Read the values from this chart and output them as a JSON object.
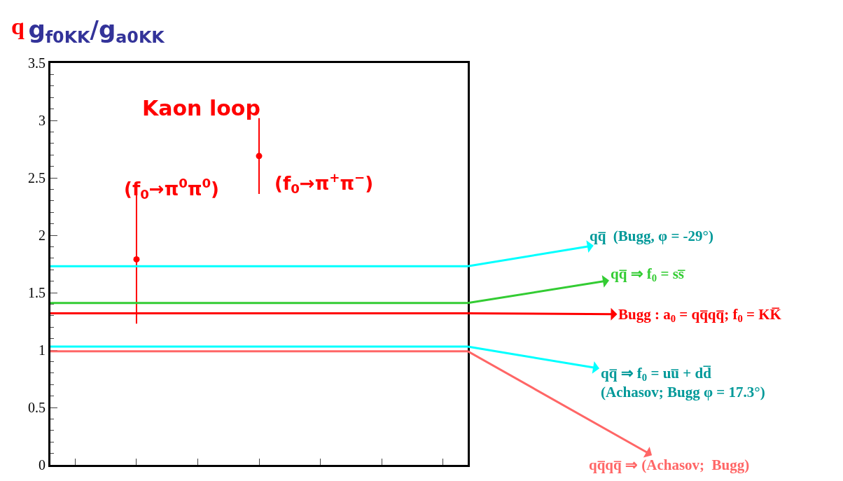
{
  "chart_data": {
    "type": "scatter",
    "title": "g$_{f0KK}$/g$_{a0KK}$",
    "categories": [
      null,
      null,
      null,
      null,
      null,
      null,
      null
    ],
    "series": [
      {
        "color": "#ff0000",
        "values": [
          null,
          1.79,
          null,
          2.69,
          null,
          null,
          null
        ],
        "errors": [
          null,
          0.56,
          null,
          0.33,
          null,
          null,
          null
        ]
      }
    ],
    "marker": "circle",
    "grid": false,
    "legend": false,
    "ylim": [
      0,
      3.5
    ],
    "yticks": [
      0,
      0.5,
      1,
      1.5,
      2,
      2.5,
      3,
      3.5
    ],
    "tick_labels": "y",
    "ref_lines": [
      {
        "axis": "y",
        "value": 1.73,
        "color": "#00ffff"
      },
      {
        "axis": "y",
        "value": 1.41,
        "color": "#33cc33"
      },
      {
        "axis": "y",
        "value": 1.32,
        "color": "#ff0000"
      },
      {
        "axis": "y",
        "value": 1.03,
        "color": "#00ffff"
      },
      {
        "axis": "y",
        "value": 0.99,
        "color": "#ff6666"
      }
    ],
    "annotations": [
      "qq̅  (Bugg, φ = -29°)",
      "qq̅ ⇒ f$_{0}$ = ss̅",
      "Bugg : a$_{0}$ = qq̅qq̅; f$_{0}$ = KK̅",
      "qq̅ ⇒ f$_{0}$ = uu̅ + dd̅\n(Achasov; Bugg φ = 17.3°)",
      "qq̅qq̅ ⇒ (Achasov;  Bugg)",
      "q",
      "Kaon loop",
      "(f$_{0}$→π$^{0}$π$^{0}$)",
      "(f$_{0}$→π$^{+}$π$^{−}$)"
    ]
  }
}
